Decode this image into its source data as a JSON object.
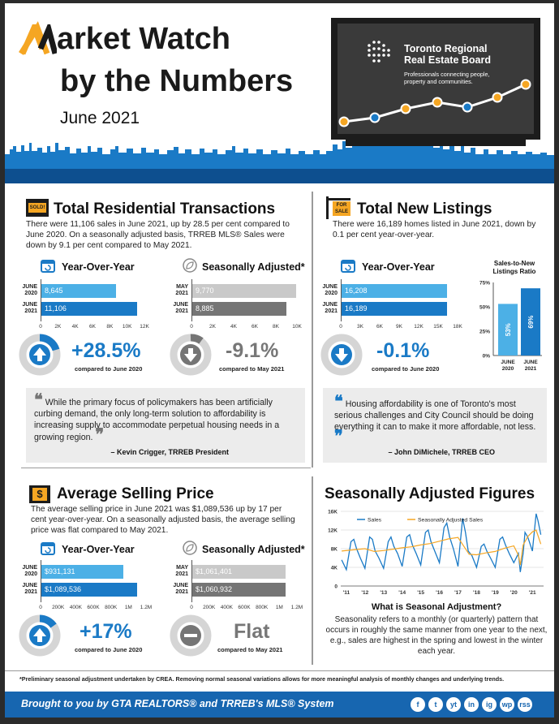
{
  "header": {
    "title_line1_rest": "arket Watch",
    "title_line2": "by the Numbers",
    "date": "June 2021",
    "board_name_1": "Toronto Regional",
    "board_name_2": "Real Estate Board",
    "board_tagline_1": "Professionals connecting people,",
    "board_tagline_2": "property and communities."
  },
  "colors": {
    "blue": "#1a7ac6",
    "light_blue": "#4cb0e6",
    "orange": "#f5a623",
    "dark_gray": "#757575",
    "light_gray": "#c9c9c9",
    "footer_blue": "#1766b0"
  },
  "transactions": {
    "icon_label": "SOLD!",
    "heading": "Total Residential Transactions",
    "body": "There were 11,106 sales in June 2021, up by 28.5 per cent compared to June 2020. On a seasonally adjusted basis, TRREB MLS® Sales were down by 9.1 per cent compared to May 2021.",
    "yoy_title": "Year-Over-Year",
    "sa_title": "Seasonally Adjusted*",
    "yoy_bars": [
      {
        "label1": "JUNE",
        "label2": "2020",
        "value": 8645,
        "text": "8,645"
      },
      {
        "label1": "JUNE",
        "label2": "2021",
        "value": 11106,
        "text": "11,106"
      }
    ],
    "yoy_ticks": [
      "0",
      "2K",
      "4K",
      "6K",
      "8K",
      "10K",
      "12K"
    ],
    "yoy_max": 12000,
    "sa_bars": [
      {
        "label1": "MAY",
        "label2": "2021",
        "value": 9770,
        "text": "9,770"
      },
      {
        "label1": "JUNE",
        "label2": "2021",
        "value": 8885,
        "text": "8,885"
      }
    ],
    "sa_ticks": [
      "0",
      "2K",
      "4K",
      "6K",
      "8K",
      "10K"
    ],
    "sa_max": 10000,
    "yoy_change": "+28.5%",
    "yoy_compare": "compared to June 2020",
    "sa_change": "-9.1%",
    "sa_compare": "compared to May 2021"
  },
  "listings": {
    "icon_label": "FOR SALE",
    "heading": "Total New Listings",
    "body": "There were 16,189 homes listed in June 2021, down by 0.1 per cent year-over-year.",
    "yoy_title": "Year-Over-Year",
    "yoy_bars": [
      {
        "label1": "JUNE",
        "label2": "2020",
        "value": 16208,
        "text": "16,208"
      },
      {
        "label1": "JUNE",
        "label2": "2021",
        "value": 16189,
        "text": "16,189"
      }
    ],
    "yoy_ticks": [
      "0",
      "3K",
      "6K",
      "9K",
      "12K",
      "15K",
      "18K"
    ],
    "yoy_max": 18000,
    "yoy_change": "-0.1%",
    "yoy_compare": "compared to June 2020",
    "ratio_title_1": "Sales-to-New",
    "ratio_title_2": "Listings Ratio",
    "ratio_ticks": [
      "75%",
      "50%",
      "25%",
      "0%"
    ],
    "ratio_bars": [
      {
        "label1": "JUNE",
        "label2": "2020",
        "value": 53,
        "text": "53%"
      },
      {
        "label1": "JUNE",
        "label2": "2021",
        "value": 69,
        "text": "69%"
      }
    ]
  },
  "quote1": {
    "text": "While the primary focus of policymakers has been artificially curbing demand, the only long-term solution to affordability is increasing supply to accommodate perpetual housing needs in a growing region.",
    "author": "– Kevin Crigger, TRREB President"
  },
  "quote2": {
    "text": "Housing affordability is one of Toronto's most serious challenges and City Council should be doing everything it can to make it more affordable, not less.",
    "author": "– John DiMichele, TRREB CEO"
  },
  "price": {
    "icon_label": "$",
    "heading": "Average Selling Price",
    "body": "The average selling price in June 2021 was $1,089,536 up by 17 per cent year-over-year. On a seasonally adjusted basis, the average selling price was flat compared to May 2021.",
    "yoy_title": "Year-Over-Year",
    "sa_title": "Seasonally Adjusted*",
    "yoy_bars": [
      {
        "label1": "JUNE",
        "label2": "2020",
        "value": 931131,
        "text": "$931,131"
      },
      {
        "label1": "JUNE",
        "label2": "2021",
        "value": 1089536,
        "text": "$1,089,536"
      }
    ],
    "yoy_ticks": [
      "0",
      "200K",
      "400K",
      "600K",
      "800K",
      "1M",
      "1.2M"
    ],
    "yoy_max": 1200000,
    "sa_bars": [
      {
        "label1": "MAY",
        "label2": "2021",
        "value": 1061401,
        "text": "$1,061,401"
      },
      {
        "label1": "JUNE",
        "label2": "2021",
        "value": 1060932,
        "text": "$1,060,932"
      }
    ],
    "sa_ticks": [
      "0",
      "200K",
      "400K",
      "600K",
      "800K",
      "1M",
      "1.2M"
    ],
    "sa_max": 1200000,
    "yoy_change": "+17%",
    "yoy_compare": "compared to June 2020",
    "sa_change": "Flat",
    "sa_compare": "compared to May 2021"
  },
  "seasonal": {
    "heading": "Seasonally Adjusted Figures",
    "question": "What is Seasonal Adjustment?",
    "body": "Seasonality refers to a monthly (or quarterly) pattern that occurs in roughly the same manner from one year to the next, e.g., sales are highest in the spring and lowest in the winter each year."
  },
  "chart_data": {
    "type": "line",
    "title": "",
    "xlabel": "",
    "ylabel": "",
    "x_ticks": [
      "'11",
      "'12",
      "'13",
      "'14",
      "'15",
      "'16",
      "'17",
      "'18",
      "'19",
      "'20",
      "'21"
    ],
    "y_ticks": [
      "0",
      "4K",
      "8K",
      "12K",
      "16K"
    ],
    "ylim": [
      0,
      16000
    ],
    "xlim": [
      2010.7,
      2021.6
    ],
    "legend": "top",
    "grid": true,
    "series": [
      {
        "name": "Sales",
        "color": "#1a7ac6",
        "x": [
          2010.75,
          2011.0,
          2011.25,
          2011.4,
          2011.55,
          2011.75,
          2012.0,
          2012.25,
          2012.4,
          2012.55,
          2012.75,
          2013.0,
          2013.25,
          2013.4,
          2013.55,
          2013.75,
          2014.0,
          2014.25,
          2014.4,
          2014.55,
          2014.75,
          2015.0,
          2015.25,
          2015.4,
          2015.55,
          2015.75,
          2016.0,
          2016.25,
          2016.4,
          2016.55,
          2016.75,
          2017.0,
          2017.25,
          2017.4,
          2017.55,
          2017.75,
          2018.0,
          2018.25,
          2018.4,
          2018.55,
          2018.75,
          2019.0,
          2019.25,
          2019.4,
          2019.55,
          2019.75,
          2020.0,
          2020.25,
          2020.35,
          2020.5,
          2020.6,
          2020.75,
          2021.0,
          2021.2,
          2021.3,
          2021.45
        ],
        "y": [
          5600,
          3500,
          9500,
          10000,
          8000,
          6000,
          3800,
          10500,
          10000,
          7500,
          6000,
          3800,
          9500,
          10500,
          8500,
          7000,
          4200,
          10500,
          11000,
          8800,
          7000,
          4500,
          11500,
          12000,
          9500,
          7500,
          5000,
          12500,
          13500,
          10500,
          8000,
          4200,
          14500,
          11500,
          7500,
          6500,
          4000,
          8500,
          9000,
          7500,
          6000,
          4000,
          10000,
          10500,
          8800,
          7000,
          5000,
          7000,
          3000,
          7000,
          11500,
          10500,
          7500,
          15500,
          14000,
          11000
        ]
      },
      {
        "name": "Seasonally Adjusted Sales",
        "color": "#f5a623",
        "x": [
          2010.75,
          2011.5,
          2012.0,
          2012.5,
          2013.0,
          2013.5,
          2014.0,
          2014.5,
          2015.0,
          2015.5,
          2016.0,
          2016.5,
          2017.0,
          2017.3,
          2017.6,
          2018.0,
          2018.5,
          2019.0,
          2019.5,
          2020.0,
          2020.25,
          2020.35,
          2020.5,
          2020.75,
          2021.0,
          2021.2,
          2021.45
        ],
        "y": [
          7500,
          7800,
          8000,
          7400,
          7600,
          7900,
          8200,
          8400,
          8800,
          9100,
          9600,
          10100,
          10400,
          8600,
          6800,
          6700,
          7100,
          7400,
          8100,
          8600,
          6600,
          4500,
          8800,
          10600,
          11600,
          12000,
          9000
        ]
      }
    ]
  },
  "footer": {
    "footnote": "*Preliminary seasonal adjustment undertaken by CREA. Removing normal seasonal variations allows for more meaningful analysis of monthly changes and underlying trends.",
    "brought_by": "Brought to you by GTA REALTORS® and TRREB's MLS® System",
    "social": [
      "f",
      "t",
      "yt",
      "in",
      "ig",
      "wp",
      "rss"
    ]
  }
}
